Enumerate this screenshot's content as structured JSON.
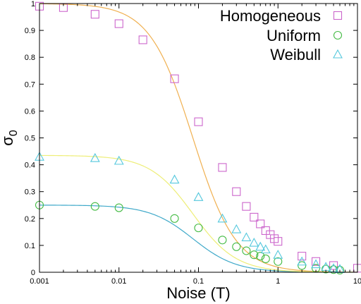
{
  "chart_data": {
    "type": "scatter",
    "xlabel": "Noise (T)",
    "ylabel": "σ",
    "ylabel_subscript": "0",
    "xscale": "log",
    "xlim": [
      0.001,
      10
    ],
    "ylim": [
      0,
      1
    ],
    "x_ticks": [
      {
        "value": 0.001,
        "label": "0.001"
      },
      {
        "value": 0.01,
        "label": "0.01"
      },
      {
        "value": 0.1,
        "label": "0.1"
      },
      {
        "value": 1,
        "label": "1"
      },
      {
        "value": 10,
        "label": "10"
      }
    ],
    "y_ticks": [
      {
        "value": 0,
        "label": "0"
      },
      {
        "value": 0.1,
        "label": "0.1"
      },
      {
        "value": 0.2,
        "label": "0.2"
      },
      {
        "value": 0.3,
        "label": "0.3"
      },
      {
        "value": 0.4,
        "label": "0.4"
      },
      {
        "value": 0.5,
        "label": "0.5"
      },
      {
        "value": 0.6,
        "label": "0.6"
      },
      {
        "value": 0.7,
        "label": "0.7"
      },
      {
        "value": 0.8,
        "label": "0.8"
      },
      {
        "value": 0.9,
        "label": "0.9"
      },
      {
        "value": 1,
        "label": "1"
      }
    ],
    "legend_position": "top-right",
    "series": [
      {
        "name": "Homogeneous",
        "marker": "square",
        "marker_color": "#cc66cc",
        "fit_color": "#f0b050",
        "fit": {
          "amplitude": 1.0,
          "x0": 0.085,
          "exponent": 1.6
        },
        "points": [
          [
            0.001,
            0.99
          ],
          [
            0.002,
            0.985
          ],
          [
            0.005,
            0.96
          ],
          [
            0.01,
            0.925
          ],
          [
            0.02,
            0.865
          ],
          [
            0.05,
            0.72
          ],
          [
            0.1,
            0.56
          ],
          [
            0.2,
            0.39
          ],
          [
            0.3,
            0.3
          ],
          [
            0.4,
            0.245
          ],
          [
            0.5,
            0.205
          ],
          [
            0.6,
            0.18
          ],
          [
            0.7,
            0.155
          ],
          [
            0.8,
            0.14
          ],
          [
            0.9,
            0.125
          ],
          [
            1.0,
            0.115
          ],
          [
            2.0,
            0.06
          ],
          [
            3.0,
            0.04
          ],
          [
            5.0,
            0.025
          ],
          [
            10.0,
            0.015
          ]
        ]
      },
      {
        "name": "Uniform",
        "marker": "circle",
        "marker_color": "#44bb44",
        "fit_color": "#3fa9c9",
        "fit": {
          "amplitude": 0.25,
          "x0": 0.085,
          "exponent": 1.6
        },
        "points": [
          [
            0.001,
            0.25
          ],
          [
            0.005,
            0.245
          ],
          [
            0.01,
            0.24
          ],
          [
            0.05,
            0.2
          ],
          [
            0.1,
            0.165
          ],
          [
            0.2,
            0.12
          ],
          [
            0.3,
            0.095
          ],
          [
            0.4,
            0.08
          ],
          [
            0.5,
            0.065
          ],
          [
            0.6,
            0.06
          ],
          [
            0.7,
            0.05
          ],
          [
            1.0,
            0.04
          ],
          [
            2.0,
            0.025
          ],
          [
            3.0,
            0.015
          ],
          [
            4.0,
            0.012
          ],
          [
            5.0,
            0.01
          ],
          [
            6.0,
            0.008
          ]
        ]
      },
      {
        "name": "Weibull",
        "marker": "triangle",
        "marker_color": "#55c8dd",
        "fit_color": "#eeee77",
        "fit": {
          "amplitude": 0.435,
          "x0": 0.085,
          "exponent": 1.6
        },
        "points": [
          [
            0.001,
            0.43
          ],
          [
            0.005,
            0.425
          ],
          [
            0.01,
            0.415
          ],
          [
            0.05,
            0.345
          ],
          [
            0.1,
            0.28
          ],
          [
            0.2,
            0.2
          ],
          [
            0.3,
            0.16
          ],
          [
            0.4,
            0.13
          ],
          [
            0.5,
            0.11
          ],
          [
            0.6,
            0.095
          ],
          [
            0.7,
            0.085
          ],
          [
            1.0,
            0.065
          ],
          [
            2.0,
            0.04
          ],
          [
            3.0,
            0.03
          ],
          [
            4.0,
            0.02
          ],
          [
            5.0,
            0.015
          ],
          [
            6.0,
            0.012
          ]
        ]
      }
    ]
  }
}
